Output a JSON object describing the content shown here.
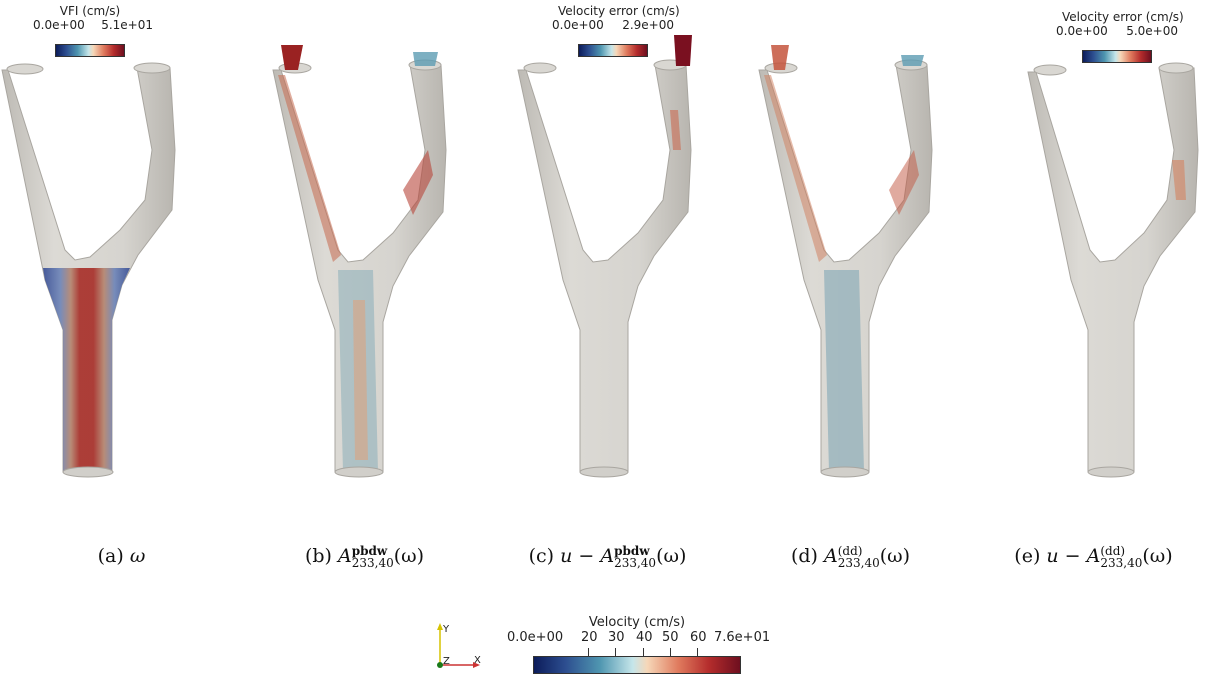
{
  "panels": [
    {
      "id": "a",
      "colorbar": {
        "title": "VFI (cm/s)",
        "min": "0.0e+00",
        "max": "5.1e+01"
      },
      "caption": {
        "prefix": "(a) ",
        "math": "ω"
      }
    },
    {
      "id": "b",
      "caption": {
        "prefix": "(b) ",
        "main": "A",
        "sup": "pbdw",
        "sub": "233,40",
        "suffix": "(ω)"
      }
    },
    {
      "id": "c",
      "colorbar": {
        "title": "Velocity error (cm/s)",
        "min": "0.0e+00",
        "max": "2.9e+00"
      },
      "caption": {
        "prefix": "(c) ",
        "lead": "u − ",
        "main": "A",
        "sup": "pbdw",
        "sub": "233,40",
        "suffix": "(ω)"
      }
    },
    {
      "id": "d",
      "caption": {
        "prefix": "(d) ",
        "main": "A",
        "sup": "(dd)",
        "sub": "233,40",
        "suffix": "(ω)"
      }
    },
    {
      "id": "e",
      "colorbar": {
        "title": "Velocity error (cm/s)",
        "min": "0.0e+00",
        "max": "5.0e+00"
      },
      "caption": {
        "prefix": "(e) ",
        "lead": "u − ",
        "main": "A",
        "sup": "(dd)",
        "sub": "233,40",
        "suffix": "(ω)"
      }
    }
  ],
  "velocity_colorbar": {
    "title": "Velocity (cm/s)",
    "ticks": [
      "0.0e+00",
      "20",
      "30",
      "40",
      "50",
      "60",
      "7.6e+01"
    ]
  },
  "axes": {
    "y": "Y",
    "z": "Z",
    "x": "X"
  }
}
